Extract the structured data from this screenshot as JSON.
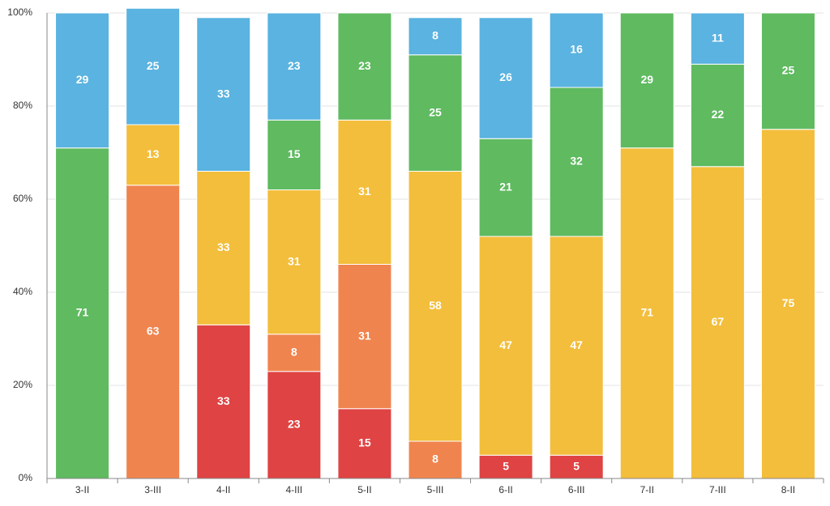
{
  "chart_data": {
    "type": "stacked_bar",
    "categories": [
      "3-II",
      "3-III",
      "4-II",
      "4-III",
      "5-II",
      "5-III",
      "6-II",
      "6-III",
      "7-II",
      "7-III",
      "8-II"
    ],
    "series": [
      {
        "color": "#df4343",
        "values": [
          null,
          null,
          33,
          23,
          15,
          null,
          5,
          5,
          null,
          null,
          null
        ]
      },
      {
        "color": "#f0844e",
        "values": [
          null,
          63,
          null,
          8,
          31,
          8,
          null,
          null,
          null,
          null,
          null
        ]
      },
      {
        "color": "#f3be3c",
        "values": [
          null,
          13,
          33,
          31,
          31,
          58,
          47,
          47,
          71,
          67,
          75
        ]
      },
      {
        "color": "#5fba60",
        "values": [
          71,
          null,
          null,
          15,
          23,
          25,
          21,
          32,
          29,
          22,
          25
        ]
      },
      {
        "color": "#5ab3e0",
        "values": [
          29,
          25,
          33,
          23,
          null,
          8,
          26,
          16,
          null,
          11,
          null
        ]
      }
    ],
    "ylim": [
      0,
      100
    ],
    "yticks": [
      {
        "value": 0,
        "label": "0%"
      },
      {
        "value": 20,
        "label": "20%"
      },
      {
        "value": 40,
        "label": "40%"
      },
      {
        "value": 60,
        "label": "60%"
      },
      {
        "value": 80,
        "label": "80%"
      },
      {
        "value": 100,
        "label": "100%"
      }
    ],
    "grid": true
  }
}
